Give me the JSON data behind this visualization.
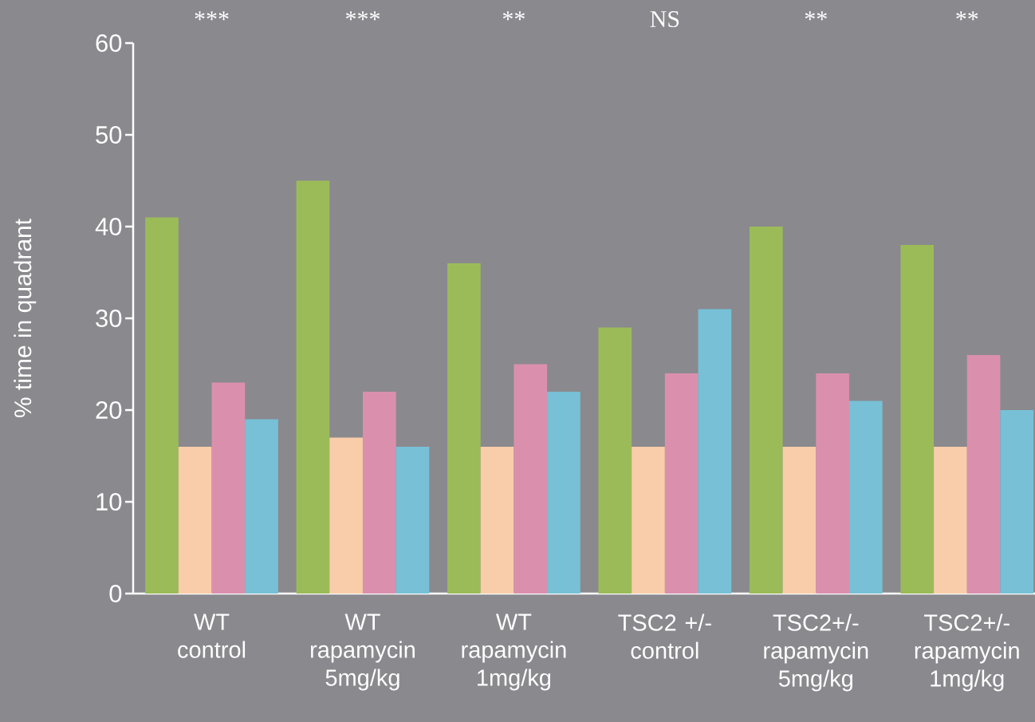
{
  "chart_data": {
    "type": "bar",
    "ylabel": "% time in quadrant",
    "categories": [
      "WT control",
      "WT rapamycin 5mg/kg",
      "WT rapamycin 1mg/kg",
      "TSC2 +/- control",
      "TSC2+/- rapamycin 5mg/kg",
      "TSC2+/- rapamycin 1mg/kg"
    ],
    "series": [
      {
        "color": "#9bbb59",
        "values": [
          41,
          45,
          36,
          29,
          40,
          38
        ]
      },
      {
        "color": "#f9cda9",
        "values": [
          16,
          17,
          16,
          16,
          16,
          16
        ]
      },
      {
        "color": "#da90ad",
        "values": [
          23,
          22,
          25,
          24,
          24,
          26
        ]
      },
      {
        "color": "#77c0d6",
        "values": [
          19,
          16,
          22,
          31,
          21,
          20
        ]
      }
    ],
    "ylim": [
      0,
      60
    ],
    "yticks": [
      0,
      10,
      20,
      30,
      40,
      50,
      60
    ],
    "grid": false,
    "annotations": [
      "***",
      "***",
      "**",
      "NS",
      "**",
      "**"
    ]
  }
}
